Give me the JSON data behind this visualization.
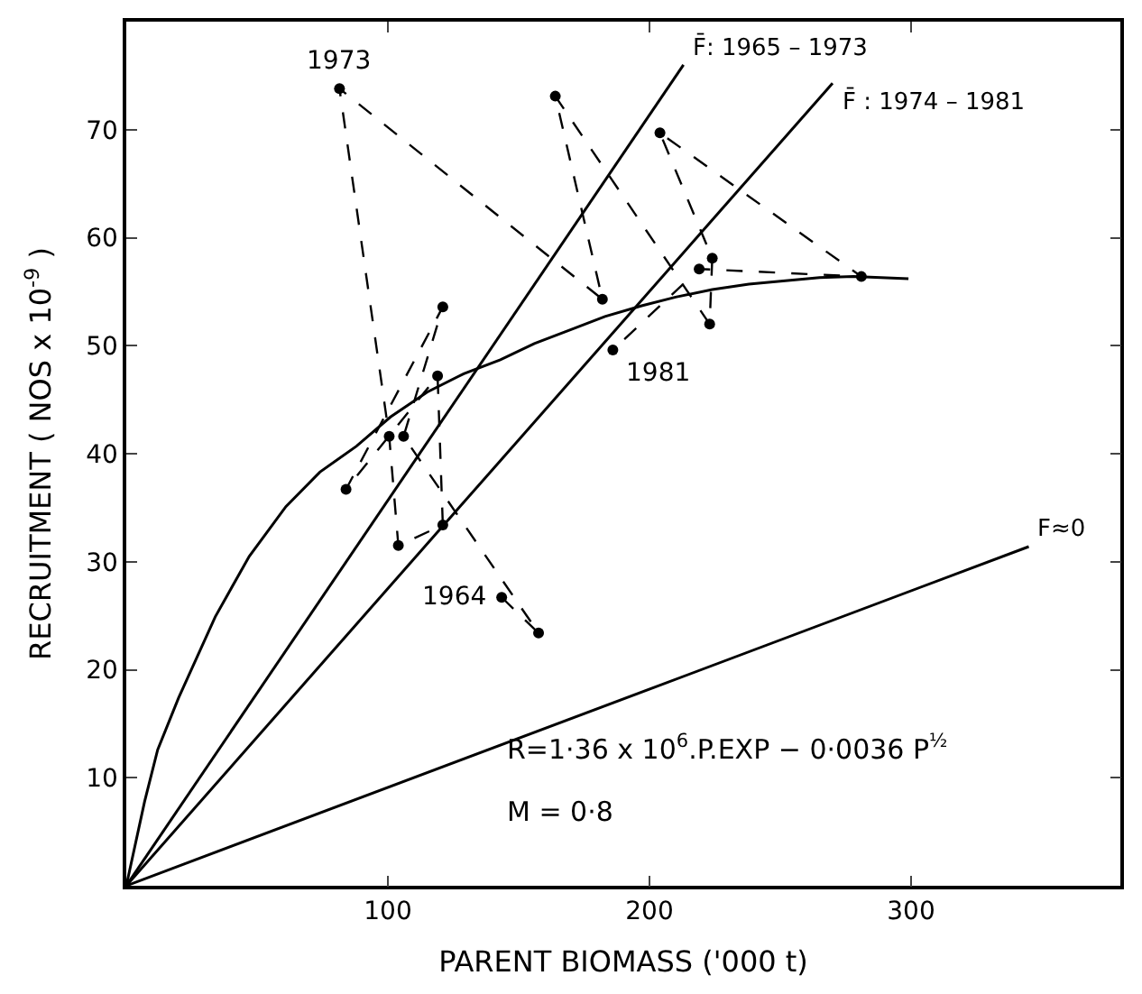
{
  "chart_data": {
    "type": "line",
    "xlabel": "PARENT BIOMASS ('000 t)",
    "ylabel": "RECRUITMENT ( NOS x 10$^{-9}$ )",
    "xlim": [
      0,
      380
    ],
    "ylim": [
      0,
      80
    ],
    "xticks": [
      100,
      200,
      300
    ],
    "yticks": [
      10,
      20,
      30,
      40,
      50,
      60,
      70
    ],
    "legend": false,
    "series": [
      {
        "color": "#000000",
        "marker": "circle",
        "line_style": "dashed",
        "x": [
          143.5,
          157.6,
          106,
          121,
          84,
          119,
          121,
          104,
          100.5,
          81.5,
          182,
          164,
          223,
          224,
          204,
          281,
          219,
          186
        ],
        "values": [
          26.7,
          23.4,
          41.6,
          53.6,
          36.7,
          47.2,
          33.4,
          31.5,
          41.6,
          73.8,
          54.3,
          73.1,
          52.0,
          58.1,
          69.7,
          56.4,
          57.1,
          49.6
        ]
      },
      {
        "color": "#000000",
        "marker": "none",
        "line_style": "solid",
        "x": [
          0,
          7,
          12,
          20,
          34,
          47,
          61,
          74,
          88,
          101,
          115,
          129,
          143,
          156,
          170,
          183,
          197,
          210,
          224,
          238,
          251,
          265,
          278,
          299
        ],
        "values": [
          0,
          7.8,
          12.6,
          17.4,
          24.9,
          30.5,
          35.1,
          38.3,
          40.7,
          43.4,
          45.7,
          47.4,
          48.7,
          50.2,
          51.5,
          52.7,
          53.7,
          54.5,
          55.2,
          55.7,
          56.0,
          56.3,
          56.4,
          56.2
        ]
      },
      {
        "name": "F̄: 1965 – 1973",
        "color": "#000000",
        "marker": "none",
        "line_style": "solid",
        "x": [
          0,
          213
        ],
        "values": [
          0,
          76
        ]
      },
      {
        "name": "F̄ : 1974 – 1981",
        "color": "#000000",
        "marker": "none",
        "line_style": "solid",
        "x": [
          0,
          270
        ],
        "values": [
          0,
          74.3
        ]
      },
      {
        "name": "F≈0",
        "color": "#000000",
        "marker": "none",
        "line_style": "solid",
        "x": [
          0,
          345
        ],
        "values": [
          0,
          31.4
        ]
      }
    ],
    "annotations": [
      {
        "text": "1973",
        "x": 81.5,
        "y": 73.8
      },
      {
        "text": "1964",
        "x": 143.5,
        "y": 26.7
      },
      {
        "text": "1981",
        "x": 186,
        "y": 49.6
      },
      "R=1·36 x 10$^{6}$.P.EXP − 0·0036 P$^{½}$",
      "M = 0·8"
    ]
  }
}
